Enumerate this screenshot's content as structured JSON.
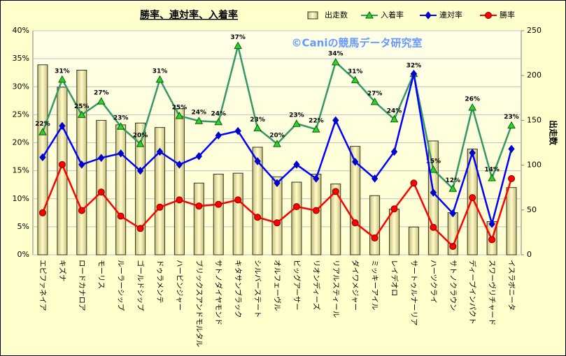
{
  "chart_data": {
    "type": "combo",
    "title": "勝率、連対率、入着率",
    "annotation": "©Caniの競馬データ研究室",
    "y2_label": "出走数",
    "categories": [
      "エピファネイア",
      "キズナ",
      "ロードカナロア",
      "モーリス",
      "ルーラーシップ",
      "ゴールドシップ",
      "ドゥラメンテ",
      "ハービンジャー",
      "ブリックスアンドモルタル",
      "サトノダイヤモンド",
      "キタサンブラック",
      "シルバーステート",
      "オルフェーヴル",
      "ビッグアーサー",
      "リオンディーズ",
      "リアルスティール",
      "ダイワメジャー",
      "ミッキーアイル",
      "レイデオロ",
      "サートゥルナーリア",
      "ハーツクライ",
      "サトノクラウン",
      "ディープインパクト",
      "スワーヴリチャード",
      "イスラボニータ"
    ],
    "series": [
      {
        "name": "出走数",
        "type": "bar",
        "axis": "y2",
        "color": "#f2efa0",
        "values": [
          212,
          187,
          206,
          150,
          145,
          147,
          142,
          163,
          80,
          90,
          91,
          120,
          87,
          81,
          90,
          79,
          121,
          66,
          51,
          31,
          127,
          47,
          118,
          37,
          75
        ]
      },
      {
        "name": "入着率",
        "type": "line",
        "marker": "triangle",
        "color": "#339966",
        "marker_color": "#33cc33",
        "values": [
          21.9,
          31.3,
          25.0,
          27.4,
          22.9,
          19.8,
          31.3,
          24.8,
          23.9,
          23.7,
          37.3,
          22.6,
          19.8,
          23.4,
          22.4,
          34.4,
          31.2,
          27.3,
          24.2,
          32.3,
          15.2,
          11.8,
          26.3,
          13.7,
          23.1
        ],
        "value_labels": [
          "22%",
          "31%",
          "25%",
          "27%",
          "23%",
          "20%",
          "31%",
          "25%",
          "24%",
          "24%",
          "37%",
          "23%",
          "20%",
          "23%",
          "22%",
          "34%",
          "31%",
          "27%",
          "24%",
          "32%",
          "15%",
          "12%",
          "26%",
          "14%",
          "23%"
        ]
      },
      {
        "name": "連対率",
        "type": "line",
        "marker": "diamond",
        "color": "#0000ff",
        "marker_color": "#0000cc",
        "values": [
          17.4,
          23.0,
          16.1,
          17.3,
          18.1,
          15.0,
          18.4,
          16.1,
          17.6,
          21.3,
          22.1,
          16.7,
          12.8,
          16.1,
          13.6,
          24.0,
          16.6,
          13.6,
          18.4,
          32.3,
          11.1,
          7.4,
          18.2,
          5.5,
          18.9
        ]
      },
      {
        "name": "勝率",
        "type": "line",
        "marker": "circle",
        "color": "#ff0000",
        "marker_color": "#ff0000",
        "values": [
          7.5,
          16.1,
          7.9,
          11.2,
          6.9,
          4.7,
          8.5,
          9.8,
          8.7,
          9.0,
          9.8,
          6.7,
          5.7,
          8.6,
          7.9,
          11.3,
          5.7,
          3.0,
          8.2,
          12.8,
          4.9,
          1.5,
          10.2,
          2.7,
          13.6
        ]
      }
    ],
    "ylim": [
      0,
      40
    ],
    "yticks": [
      {
        "value": 0,
        "label": "0%"
      },
      {
        "value": 5,
        "label": "5%"
      },
      {
        "value": 10,
        "label": "10%"
      },
      {
        "value": 15,
        "label": "15%"
      },
      {
        "value": 20,
        "label": "20%"
      },
      {
        "value": 25,
        "label": "25%"
      },
      {
        "value": 30,
        "label": "30%"
      },
      {
        "value": 35,
        "label": "35%"
      },
      {
        "value": 40,
        "label": "40%"
      }
    ],
    "y2lim": [
      0,
      250
    ],
    "y2ticks": [
      0,
      50,
      100,
      150,
      200,
      250
    ],
    "grid": true
  }
}
